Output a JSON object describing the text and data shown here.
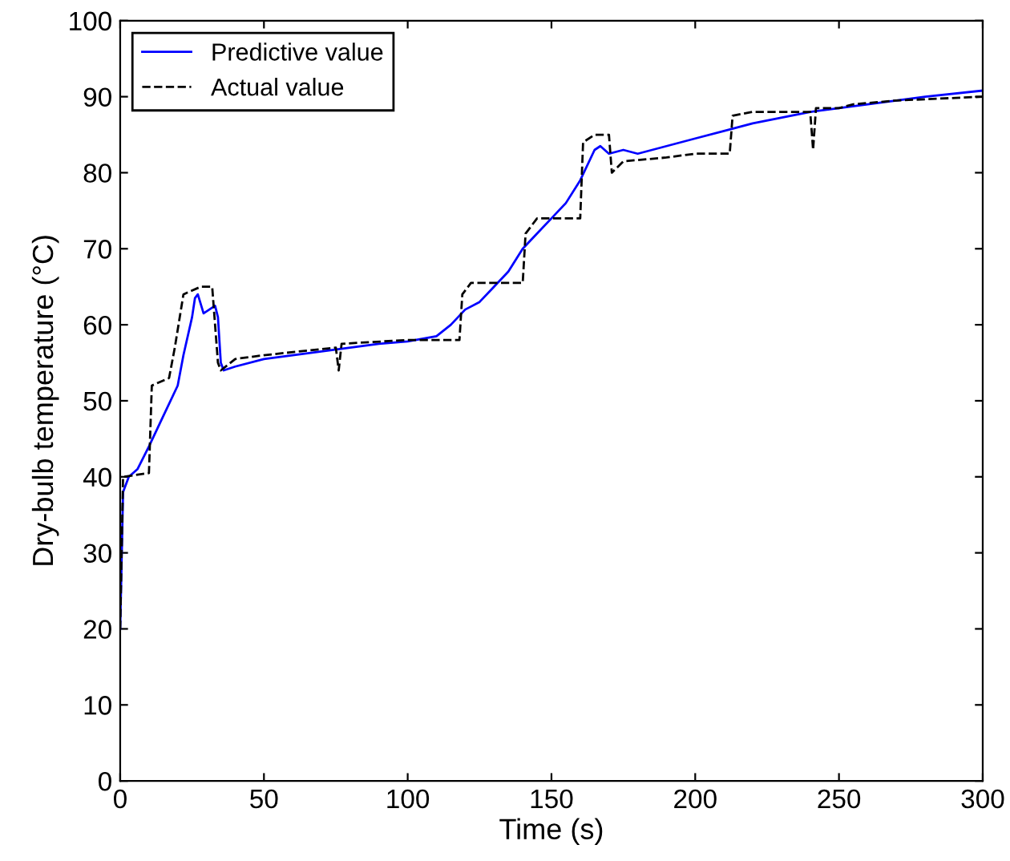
{
  "chart_data": {
    "type": "line",
    "xlabel": "Time (s)",
    "ylabel": "Dry-bulb temperature (°C)",
    "xlim": [
      0,
      300
    ],
    "ylim": [
      0,
      100
    ],
    "xticks": [
      0,
      50,
      100,
      150,
      200,
      250,
      300
    ],
    "yticks": [
      0,
      10,
      20,
      30,
      40,
      50,
      60,
      70,
      80,
      90,
      100
    ],
    "grid": false,
    "legend": "top left",
    "series": [
      {
        "name": "Predictive value",
        "color": "#0000ff",
        "line_style": "solid",
        "x": [
          0,
          1,
          3,
          6,
          10,
          15,
          20,
          22,
          25,
          26,
          27,
          29,
          31,
          33,
          34,
          35,
          36,
          40,
          50,
          70,
          90,
          100,
          110,
          115,
          120,
          125,
          130,
          135,
          140,
          145,
          150,
          155,
          160,
          165,
          167,
          170,
          175,
          180,
          190,
          200,
          210,
          220,
          240,
          250,
          260,
          280,
          300
        ],
        "values": [
          20,
          38,
          40,
          41,
          44,
          48,
          52,
          56,
          61,
          63.5,
          64,
          61.5,
          62,
          62.5,
          61,
          55,
          54,
          54.5,
          55.5,
          56.5,
          57.5,
          57.8,
          58.5,
          60,
          62,
          63,
          65,
          67,
          70,
          72,
          74,
          76,
          79,
          83,
          83.5,
          82.5,
          83,
          82.5,
          83.5,
          84.5,
          85.5,
          86.5,
          88,
          88.5,
          89,
          90,
          90.8
        ]
      },
      {
        "name": "Actual value",
        "color": "#000000",
        "line_style": "dashed",
        "x": [
          0,
          1,
          10,
          11,
          17,
          19,
          22,
          28,
          32,
          34,
          35,
          40,
          50,
          75,
          76,
          77,
          100,
          118,
          119,
          122,
          140,
          141,
          145,
          160,
          161,
          165,
          170,
          171,
          175,
          190,
          200,
          212,
          213,
          220,
          240,
          241,
          242,
          250,
          255,
          270,
          300
        ],
        "values": [
          20,
          40,
          40.5,
          52,
          53,
          57,
          64,
          65,
          65,
          55,
          54,
          55.5,
          56,
          57,
          54,
          57.5,
          58,
          58,
          64,
          65.5,
          65.5,
          72,
          74,
          74,
          84,
          85,
          85,
          80,
          81.5,
          82,
          82.5,
          82.5,
          87.5,
          88,
          88,
          83,
          88.5,
          88.5,
          89,
          89.5,
          90
        ]
      }
    ]
  }
}
